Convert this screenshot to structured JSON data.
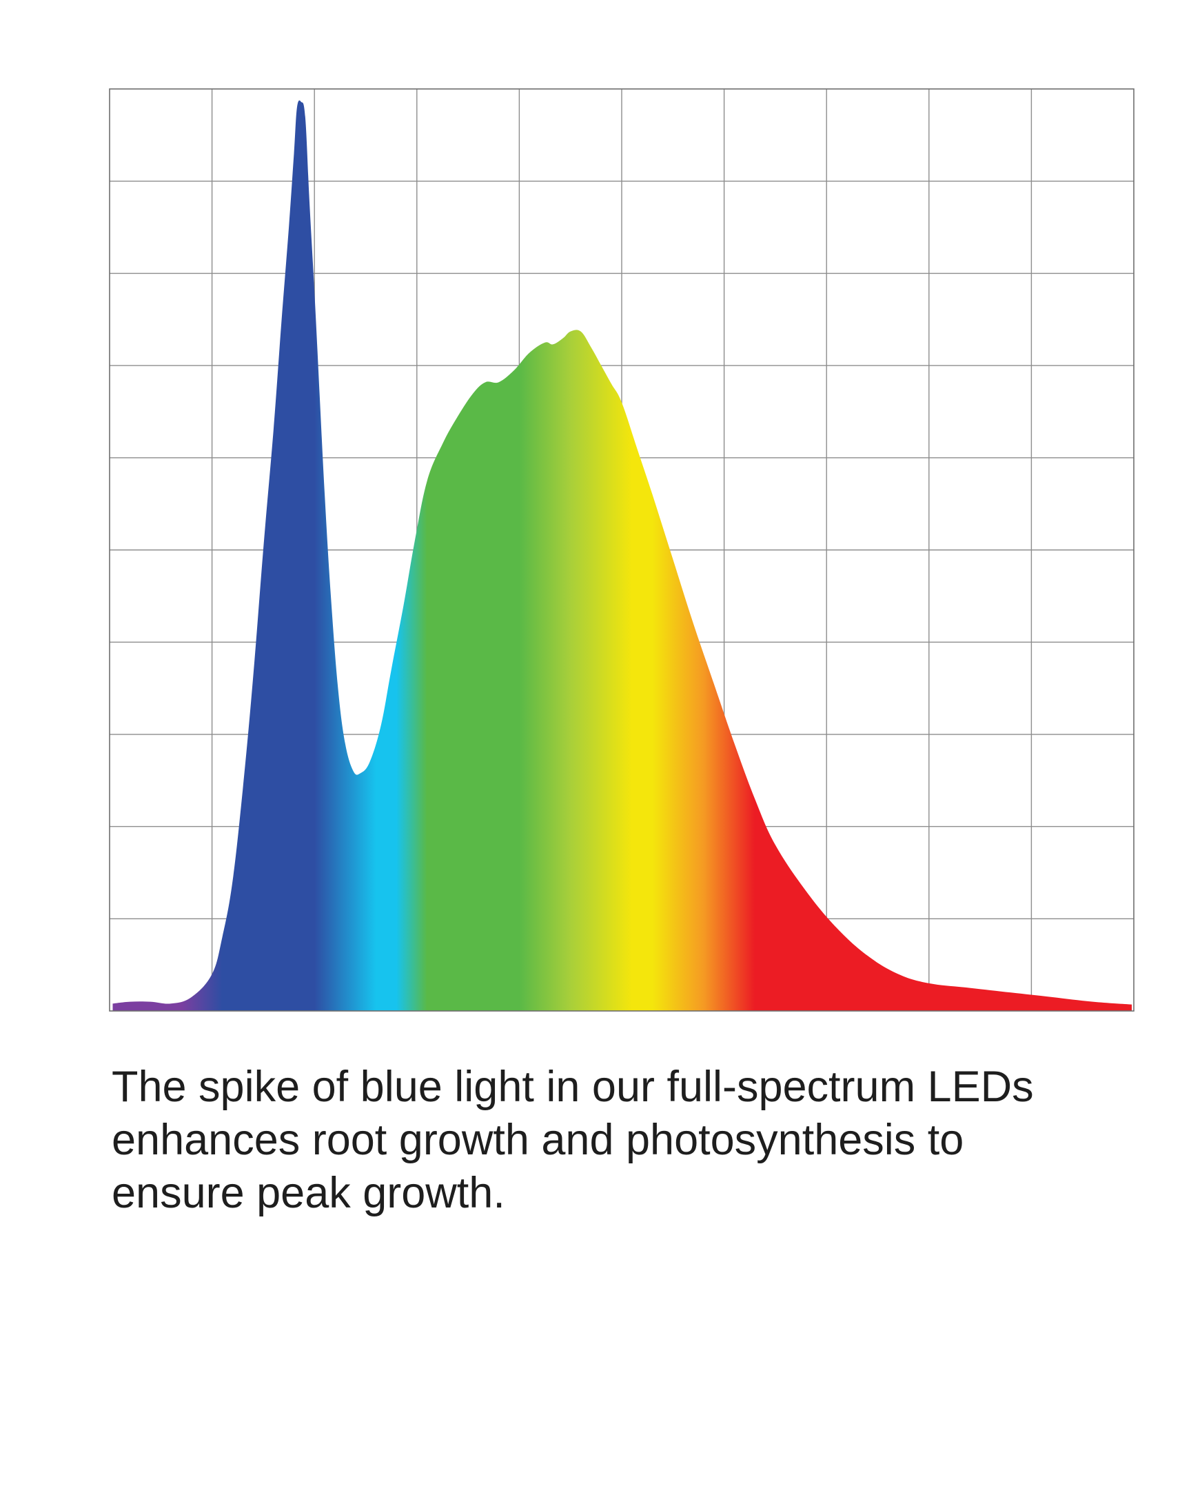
{
  "caption": "The spike of blue light in our full-spectrum LEDs enhances root growth and photosynthesis to ensure peak growth.",
  "chart_data": {
    "type": "area",
    "title": "",
    "xlabel": "",
    "ylabel": "",
    "xlim": [
      0,
      100
    ],
    "ylim": [
      0,
      100
    ],
    "grid": true,
    "grid_columns": 10,
    "grid_rows": 10,
    "fill": "rainbow spectrum gradient (violet, blue, cyan, green, yellow, orange, red)",
    "gradient_colors": {
      "violet": "#7b3fa0",
      "blue": "#2e4ea3",
      "cyan": "#17c3ee",
      "green": "#5ab947",
      "yellow-green": "#a8cf3a",
      "yellow": "#f4e60c",
      "orange": "#f59a23",
      "red": "#ec1c24"
    },
    "grid_color": "#8c8c8c",
    "series": [
      {
        "values": [
          [
            0.3,
            0.8
          ],
          [
            2,
            1.0
          ],
          [
            4,
            1.0
          ],
          [
            6,
            0.8
          ],
          [
            8,
            1.5
          ],
          [
            10,
            4.0
          ],
          [
            11,
            8.0
          ],
          [
            12,
            14.0
          ],
          [
            13,
            24.0
          ],
          [
            14,
            36.0
          ],
          [
            15,
            50.0
          ],
          [
            16,
            63.0
          ],
          [
            16.8,
            75.0
          ],
          [
            17.5,
            85.0
          ],
          [
            18.0,
            93.0
          ],
          [
            18.3,
            98.0
          ],
          [
            18.7,
            98.6
          ],
          [
            19.1,
            97.0
          ],
          [
            19.5,
            88.0
          ],
          [
            20.0,
            78.0
          ],
          [
            20.5,
            67.0
          ],
          [
            21.0,
            56.0
          ],
          [
            21.6,
            45.0
          ],
          [
            22.3,
            35.0
          ],
          [
            23.0,
            29.0
          ],
          [
            23.8,
            26.0
          ],
          [
            24.5,
            25.8
          ],
          [
            25.4,
            27.0
          ],
          [
            26.5,
            31.0
          ],
          [
            27.5,
            37.0
          ],
          [
            28.7,
            44.0
          ],
          [
            29.8,
            51.0
          ],
          [
            31.0,
            57.5
          ],
          [
            32.5,
            61.5
          ],
          [
            34.0,
            64.5
          ],
          [
            35.5,
            67.0
          ],
          [
            36.7,
            68.2
          ],
          [
            38.0,
            68.2
          ],
          [
            39.5,
            69.5
          ],
          [
            41.0,
            71.4
          ],
          [
            42.5,
            72.5
          ],
          [
            43.3,
            72.3
          ],
          [
            44.3,
            73.0
          ],
          [
            45.0,
            73.7
          ],
          [
            46.0,
            73.7
          ],
          [
            47.0,
            72.0
          ],
          [
            48.0,
            70.0
          ],
          [
            49.0,
            68.0
          ],
          [
            50.0,
            66.0
          ],
          [
            51.5,
            61.0
          ],
          [
            53.0,
            56.0
          ],
          [
            55.0,
            49.0
          ],
          [
            57.0,
            42.0
          ],
          [
            59.0,
            35.5
          ],
          [
            61.0,
            29.0
          ],
          [
            63.0,
            23.0
          ],
          [
            65.0,
            18.0
          ],
          [
            68.0,
            13.0
          ],
          [
            71.0,
            9.0
          ],
          [
            74.0,
            6.0
          ],
          [
            77.0,
            4.0
          ],
          [
            80.0,
            3.0
          ],
          [
            84.0,
            2.5
          ],
          [
            88.0,
            2.0
          ],
          [
            92.0,
            1.5
          ],
          [
            96.0,
            1.0
          ],
          [
            99.8,
            0.7
          ]
        ]
      }
    ]
  }
}
